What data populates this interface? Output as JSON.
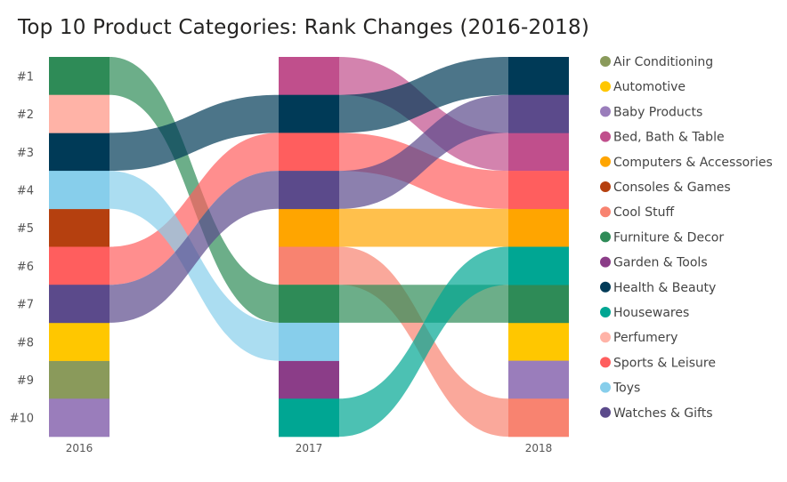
{
  "chart_data": {
    "type": "ribbon",
    "title": "Top 10 Product Categories: Rank Changes (2016-2018)",
    "years": [
      "2016",
      "2017",
      "2018"
    ],
    "rank_labels": [
      "#1",
      "#2",
      "#3",
      "#4",
      "#5",
      "#6",
      "#7",
      "#8",
      "#9",
      "#10"
    ],
    "categories": [
      {
        "name": "Air Conditioning",
        "color": "#8A9A5B",
        "ranks": [
          9,
          null,
          null
        ]
      },
      {
        "name": "Automotive",
        "color": "#FFC700",
        "ranks": [
          8,
          null,
          8
        ]
      },
      {
        "name": "Baby Products",
        "color": "#9A7DBB",
        "ranks": [
          10,
          null,
          9
        ]
      },
      {
        "name": "Bed, Bath & Table",
        "color": "#C04F8C",
        "ranks": [
          null,
          1,
          3
        ]
      },
      {
        "name": "Computers & Accessories",
        "color": "#FFA500",
        "ranks": [
          null,
          5,
          5
        ]
      },
      {
        "name": "Consoles & Games",
        "color": "#B5400F",
        "ranks": [
          5,
          null,
          null
        ]
      },
      {
        "name": "Cool Stuff",
        "color": "#F88370",
        "ranks": [
          null,
          6,
          10
        ]
      },
      {
        "name": "Furniture & Decor",
        "color": "#2E8B57",
        "ranks": [
          1,
          7,
          7
        ]
      },
      {
        "name": "Garden & Tools",
        "color": "#8B3D88",
        "ranks": [
          null,
          9,
          null
        ]
      },
      {
        "name": "Health & Beauty",
        "color": "#003A57",
        "ranks": [
          3,
          2,
          1
        ]
      },
      {
        "name": "Housewares",
        "color": "#00A693",
        "ranks": [
          null,
          10,
          6
        ]
      },
      {
        "name": "Perfumery",
        "color": "#FFB3A7",
        "ranks": [
          2,
          null,
          null
        ]
      },
      {
        "name": "Sports & Leisure",
        "color": "#FF5E5E",
        "ranks": [
          6,
          3,
          4
        ]
      },
      {
        "name": "Toys",
        "color": "#87CEEB",
        "ranks": [
          4,
          8,
          null
        ]
      },
      {
        "name": "Watches & Gifts",
        "color": "#5B4A8B",
        "ranks": [
          7,
          4,
          2
        ]
      }
    ],
    "legend_position": "right"
  }
}
